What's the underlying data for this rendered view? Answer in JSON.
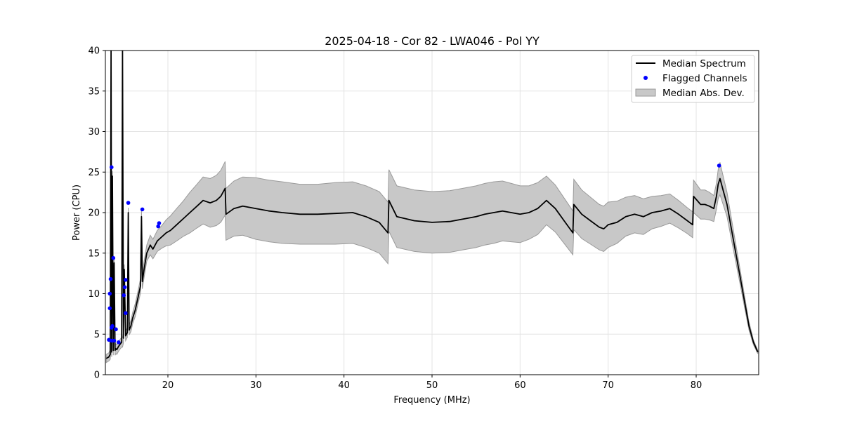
{
  "chart_data": {
    "type": "line",
    "title": "2025-04-18 - Cor 82 - LWA046 - Pol YY",
    "xlabel": "Frequency (MHz)",
    "ylabel": "Power (CPU)",
    "xlim": [
      12.9,
      87.1
    ],
    "ylim": [
      0,
      40
    ],
    "xticks": [
      20,
      30,
      40,
      50,
      60,
      70,
      80
    ],
    "yticks": [
      0,
      5,
      10,
      15,
      20,
      25,
      30,
      35,
      40
    ],
    "grid": true,
    "legend": {
      "placement": "top-right",
      "entries": [
        "Median Spectrum",
        "Flagged Channels",
        "Median Abs. Dev."
      ]
    },
    "colors": {
      "median": "#000000",
      "flagged": "#0000ff",
      "mad_fill": "#c8c8c8",
      "mad_edge": "#9a9a9a",
      "grid": "#e3e3e3"
    },
    "series": [
      {
        "name": "Median Spectrum",
        "kind": "line",
        "x": [
          13.0,
          13.3,
          13.45,
          13.55,
          13.62,
          13.7,
          13.8,
          13.9,
          14.0,
          14.1,
          14.2,
          14.4,
          14.6,
          14.75,
          14.85,
          14.95,
          15.05,
          15.2,
          15.4,
          15.5,
          15.6,
          15.8,
          16.0,
          16.3,
          16.6,
          16.9,
          17.0,
          17.1,
          17.3,
          17.6,
          18.0,
          18.3,
          18.8,
          19.3,
          19.8,
          20.3,
          21.0,
          21.8,
          22.5,
          23.3,
          24.0,
          24.8,
          25.5,
          26.0,
          26.5,
          26.6,
          27.5,
          28.5,
          30.0,
          31.5,
          33.0,
          35.0,
          37.0,
          39.0,
          41.0,
          42.5,
          44.0,
          45.0,
          45.1,
          46.0,
          48.0,
          50.0,
          52.0,
          53.5,
          55.0,
          56.0,
          57.0,
          58.0,
          59.0,
          60.0,
          61.0,
          62.0,
          62.5,
          63.0,
          64.0,
          65.0,
          66.0,
          66.1,
          67.0,
          68.0,
          69.0,
          69.5,
          70.0,
          71.0,
          72.0,
          73.0,
          74.0,
          75.0,
          76.0,
          77.0,
          78.0,
          79.0,
          79.6,
          79.7,
          80.5,
          81.0,
          81.5,
          82.0,
          82.3,
          82.5,
          82.7,
          83.0,
          83.5,
          84.0,
          84.5,
          85.0,
          85.5,
          86.0,
          86.5,
          87.0
        ],
        "y": [
          2.0,
          2.2,
          2.5,
          40.0,
          2.8,
          24.5,
          3.0,
          13.8,
          3.0,
          3.2,
          3.1,
          3.5,
          3.8,
          4.0,
          40.0,
          4.5,
          13.0,
          4.8,
          5.2,
          20.0,
          5.5,
          6.0,
          7.0,
          8.0,
          9.5,
          11.0,
          19.5,
          11.5,
          13.0,
          15.0,
          16.0,
          15.5,
          16.5,
          17.0,
          17.5,
          17.8,
          18.5,
          19.3,
          20.0,
          20.8,
          21.5,
          21.2,
          21.5,
          22.0,
          23.0,
          19.8,
          20.5,
          20.8,
          20.5,
          20.2,
          20.0,
          19.8,
          19.8,
          19.9,
          20.0,
          19.5,
          18.8,
          17.5,
          21.5,
          19.5,
          19.0,
          18.8,
          18.9,
          19.2,
          19.5,
          19.8,
          20.0,
          20.2,
          20.0,
          19.8,
          20.0,
          20.5,
          21.0,
          21.5,
          20.5,
          19.0,
          17.5,
          21.0,
          19.8,
          19.0,
          18.2,
          18.0,
          18.5,
          18.8,
          19.5,
          19.8,
          19.5,
          20.0,
          20.2,
          20.5,
          19.8,
          19.0,
          18.5,
          22.0,
          21.0,
          21.0,
          20.8,
          20.5,
          22.0,
          23.5,
          24.2,
          23.0,
          21.0,
          18.0,
          15.0,
          12.0,
          9.0,
          6.0,
          4.0,
          2.8
        ],
        "mad_half_width": [
          0.5,
          0.5,
          0.6,
          0.6,
          0.6,
          0.6,
          0.6,
          0.6,
          0.6,
          0.6,
          0.6,
          0.6,
          0.6,
          0.6,
          0.6,
          0.6,
          0.6,
          0.6,
          0.6,
          0.6,
          0.6,
          0.7,
          0.7,
          0.8,
          0.8,
          0.9,
          0.9,
          0.9,
          1.0,
          1.0,
          1.2,
          1.2,
          1.3,
          1.4,
          1.6,
          1.8,
          2.0,
          2.2,
          2.5,
          2.7,
          2.9,
          3.0,
          3.1,
          3.2,
          3.3,
          3.2,
          3.4,
          3.6,
          3.8,
          3.8,
          3.8,
          3.7,
          3.7,
          3.8,
          3.8,
          3.8,
          3.8,
          3.8,
          3.8,
          3.8,
          3.8,
          3.8,
          3.8,
          3.8,
          3.8,
          3.8,
          3.8,
          3.7,
          3.6,
          3.5,
          3.3,
          3.2,
          3.1,
          3.0,
          2.9,
          2.8,
          2.7,
          3.1,
          3.0,
          2.9,
          2.8,
          2.8,
          2.8,
          2.6,
          2.4,
          2.3,
          2.2,
          2.0,
          1.9,
          1.8,
          1.7,
          1.6,
          1.6,
          2.0,
          1.8,
          1.8,
          1.7,
          1.6,
          1.6,
          1.8,
          2.0,
          1.8,
          1.5,
          1.3,
          1.1,
          0.9,
          0.7,
          0.5,
          0.3,
          0.2
        ]
      },
      {
        "name": "Flagged Channels",
        "kind": "scatter",
        "x": [
          13.3,
          13.4,
          13.4,
          13.5,
          13.6,
          13.6,
          13.6,
          13.7,
          13.8,
          13.9,
          14.1,
          14.4,
          15.0,
          15.1,
          15.2,
          15.2,
          15.5,
          17.1,
          18.9,
          19.0,
          82.6
        ],
        "y": [
          4.3,
          8.2,
          10.0,
          11.8,
          25.6,
          5.8,
          4.2,
          6.0,
          14.4,
          4.2,
          5.6,
          4.0,
          9.8,
          10.8,
          11.7,
          7.6,
          21.2,
          20.4,
          18.3,
          18.7,
          25.8
        ]
      }
    ]
  }
}
